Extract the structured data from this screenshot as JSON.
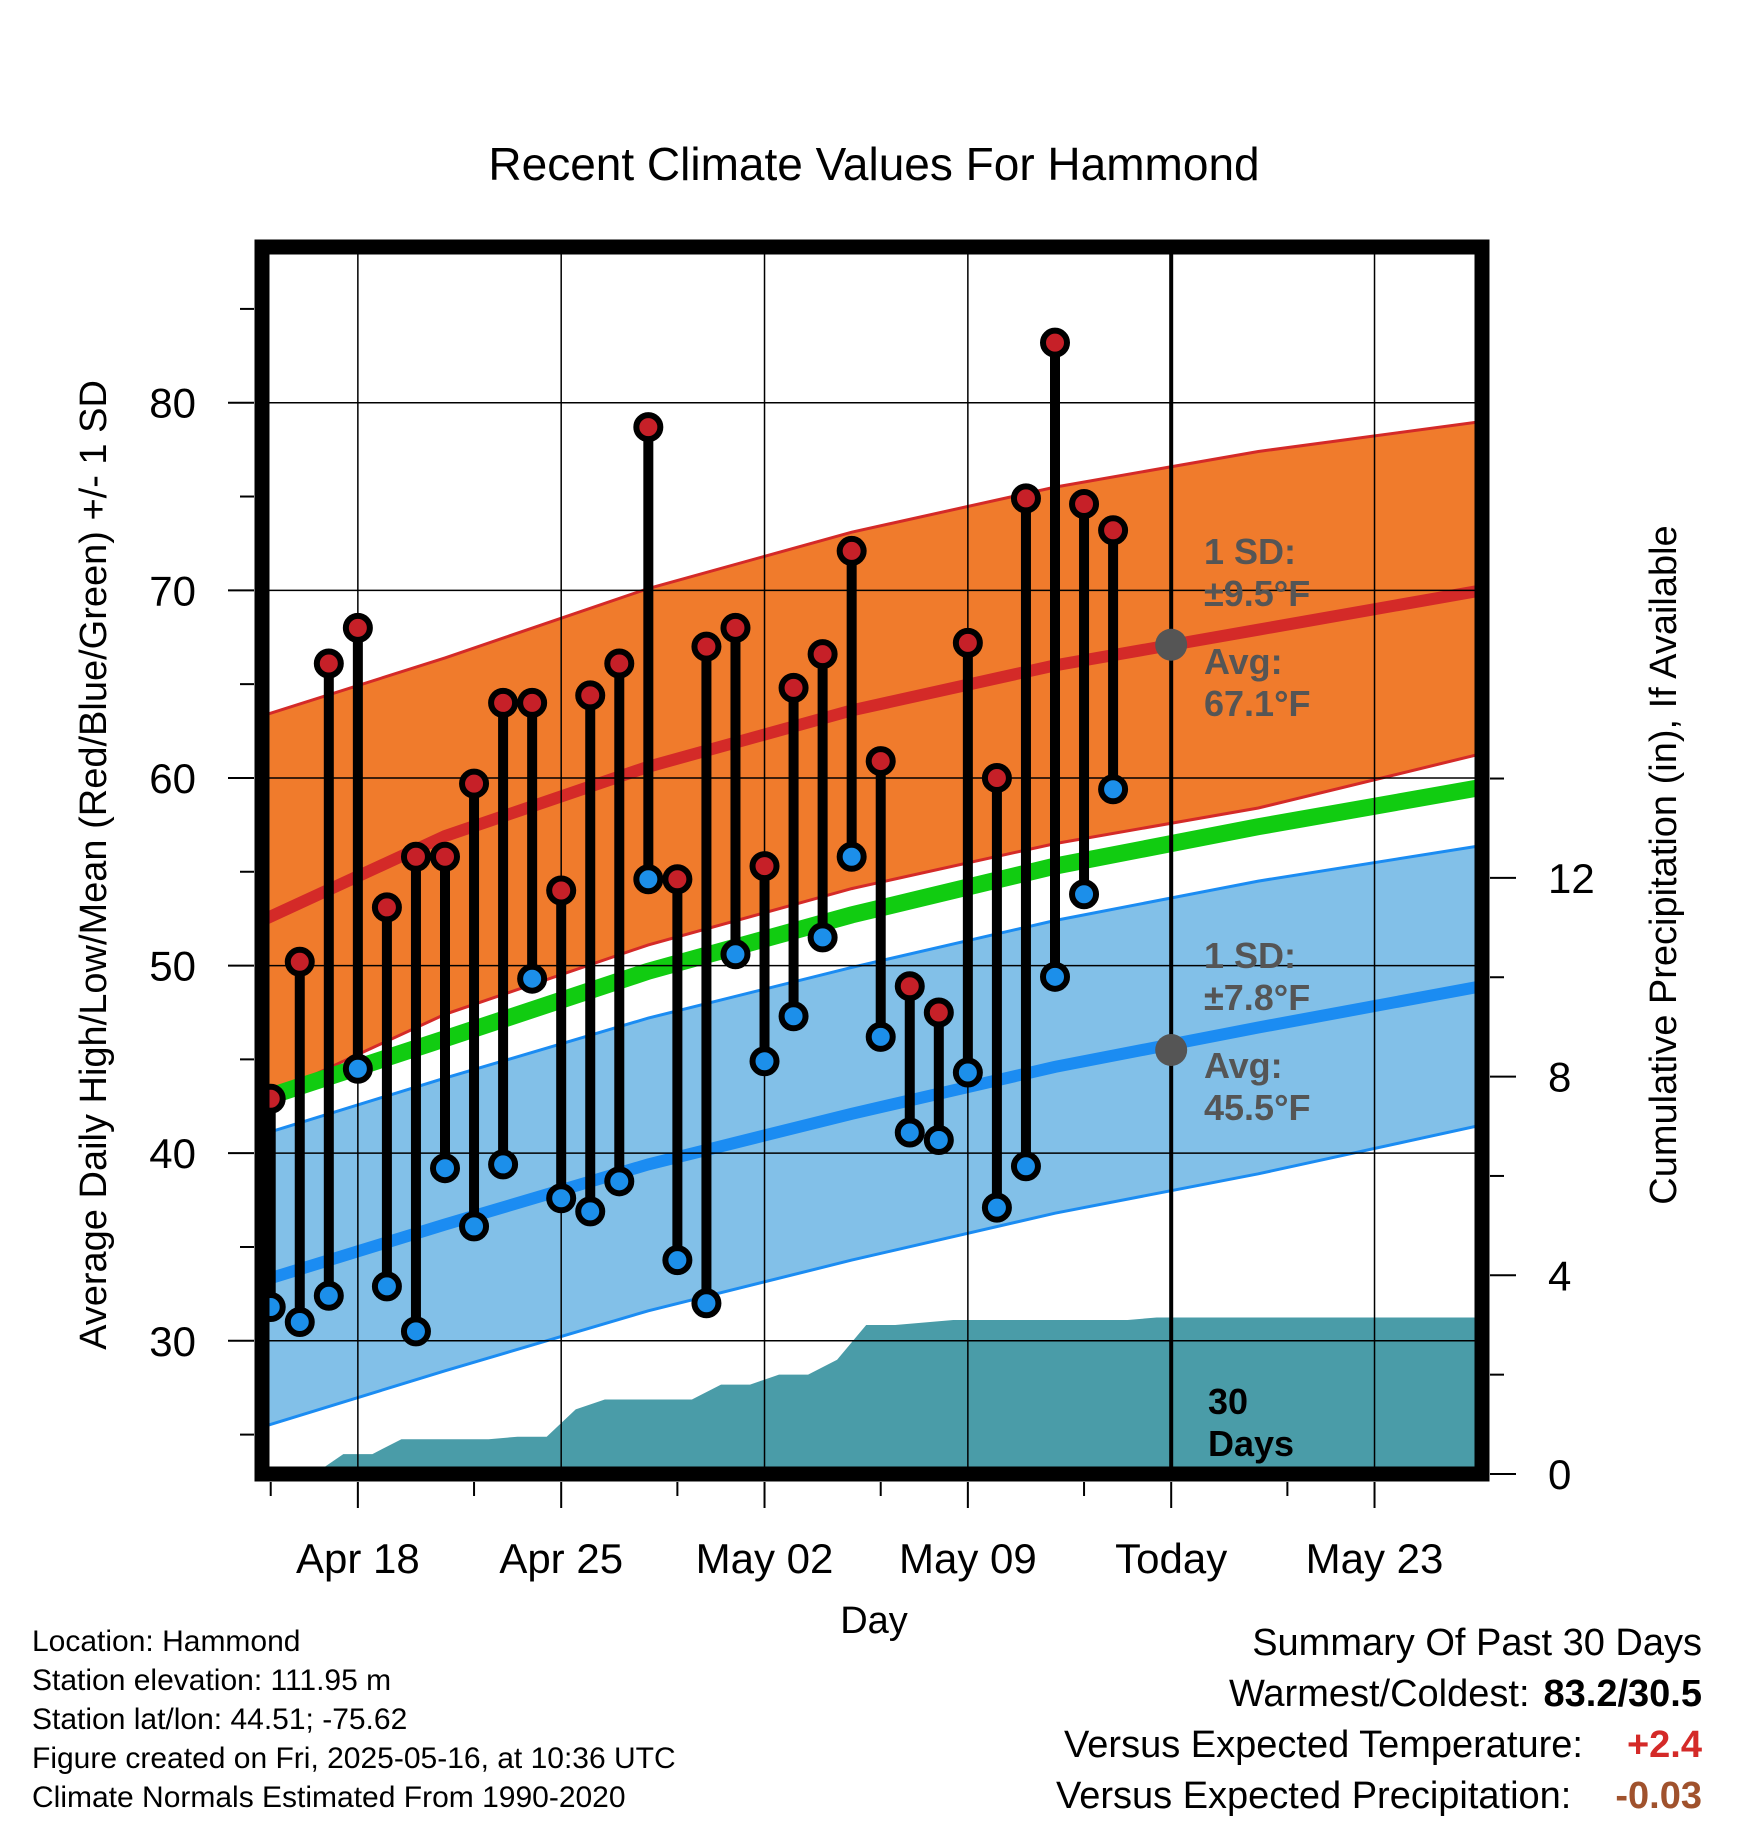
{
  "chart_data": {
    "type": "line",
    "title": "Recent Climate Values For Hammond",
    "xlabel": "Day",
    "ylabel": "Average Daily High/Low/Mean (Red/Blue/Green) +/- 1 SD",
    "y2label": "Cumulative Precipitation (in), If Available",
    "ylim": [
      22.9,
      88.3
    ],
    "y2lim": [
      0,
      24.7
    ],
    "y_ticks": [
      30,
      40,
      50,
      60,
      70,
      80
    ],
    "y2_ticks": [
      0,
      4,
      8,
      12
    ],
    "x_range": [
      "2025-04-14.7",
      "2025-05-26.7"
    ],
    "x_ticks": [
      {
        "date": "2025-04-18",
        "label": "Apr 18"
      },
      {
        "date": "2025-04-25",
        "label": "Apr 25"
      },
      {
        "date": "2025-05-02",
        "label": "May 02"
      },
      {
        "date": "2025-05-09",
        "label": "May 09"
      },
      {
        "date": "2025-05-16",
        "label": "Today"
      },
      {
        "date": "2025-05-23",
        "label": "May 23"
      }
    ],
    "today": "2025-05-16",
    "grid": true,
    "normals": {
      "dates": [
        "2025-04-14.7",
        "2025-04-21",
        "2025-04-28",
        "2025-05-05",
        "2025-05-12",
        "2025-05-19",
        "2025-05-26.7"
      ],
      "avg_high": [
        52.4,
        56.9,
        60.6,
        63.6,
        66.0,
        67.9,
        70.0
      ],
      "high_sd_upper": [
        63.3,
        66.4,
        70.1,
        73.1,
        75.5,
        77.4,
        79.0
      ],
      "high_sd_lower": [
        42.9,
        47.4,
        51.1,
        54.1,
        56.5,
        58.4,
        61.3
      ],
      "avg_mean": [
        42.9,
        46.1,
        49.7,
        52.7,
        55.3,
        57.4,
        59.5
      ],
      "avg_low": [
        33.2,
        36.2,
        39.4,
        42.1,
        44.6,
        46.7,
        48.9
      ],
      "low_sd_upper": [
        41.0,
        44.0,
        47.2,
        49.9,
        52.4,
        54.5,
        56.4
      ],
      "low_sd_lower": [
        25.4,
        28.4,
        31.6,
        34.3,
        36.8,
        38.9,
        41.5
      ]
    },
    "high_sd_label": "1 SD:",
    "high_sd_value": "±9.5°F",
    "high_avg_label": "Avg:",
    "high_avg_value": "67.1°F",
    "low_sd_label": "1 SD:",
    "low_sd_value": "±7.8°F",
    "low_avg_label": "Avg:",
    "low_avg_value": "45.5°F",
    "today_high_avg": 67.1,
    "today_low_avg": 45.5,
    "days_label_1": "30",
    "days_label_2": "Days",
    "daily": {
      "dates": [
        "2025-04-15",
        "2025-04-16",
        "2025-04-17",
        "2025-04-18",
        "2025-04-19",
        "2025-04-20",
        "2025-04-21",
        "2025-04-22",
        "2025-04-23",
        "2025-04-24",
        "2025-04-25",
        "2025-04-26",
        "2025-04-27",
        "2025-04-28",
        "2025-04-29",
        "2025-04-30",
        "2025-05-01",
        "2025-05-02",
        "2025-05-03",
        "2025-05-04",
        "2025-05-05",
        "2025-05-06",
        "2025-05-07",
        "2025-05-08",
        "2025-05-09",
        "2025-05-10",
        "2025-05-11",
        "2025-05-12",
        "2025-05-13",
        "2025-05-14",
        "2025-05-15"
      ],
      "highs": [
        42.9,
        50.2,
        66.1,
        68.0,
        53.1,
        55.8,
        55.8,
        59.7,
        64.0,
        64.0,
        54.0,
        64.4,
        66.1,
        78.7,
        54.6,
        67.0,
        68.0,
        55.3,
        64.8,
        66.6,
        72.1,
        60.9,
        48.9,
        47.5,
        67.2,
        60.0,
        74.9,
        83.2,
        74.6,
        73.2,
        null
      ],
      "lows": [
        31.8,
        31.0,
        32.4,
        44.5,
        32.9,
        30.5,
        39.2,
        36.1,
        39.4,
        49.3,
        37.6,
        36.9,
        38.5,
        54.6,
        34.3,
        32.0,
        50.6,
        44.9,
        47.3,
        51.5,
        55.8,
        46.2,
        41.1,
        40.7,
        44.3,
        37.1,
        39.3,
        49.4,
        53.8,
        59.4,
        null
      ]
    },
    "precip": {
      "dates": [
        "2025-04-14.7",
        "2025-04-16.5",
        "2025-04-17.5",
        "2025-04-18.5",
        "2025-04-19.5",
        "2025-04-20.5",
        "2025-04-21.5",
        "2025-04-22.5",
        "2025-04-23.5",
        "2025-04-24.5",
        "2025-04-25.5",
        "2025-04-26.5",
        "2025-04-27.5",
        "2025-04-28.5",
        "2025-04-29.5",
        "2025-04-30.5",
        "2025-05-01.5",
        "2025-05-02.5",
        "2025-05-03.5",
        "2025-05-04.5",
        "2025-05-05.5",
        "2025-05-06.5",
        "2025-05-07.5",
        "2025-05-08.5",
        "2025-05-09.5",
        "2025-05-10.5",
        "2025-05-11.5",
        "2025-05-12.5",
        "2025-05-13.5",
        "2025-05-14.5",
        "2025-05-15.5",
        "2025-05-16",
        "2025-05-26.7"
      ],
      "values": [
        0,
        0,
        0.4,
        0.4,
        0.7,
        0.7,
        0.7,
        0.7,
        0.75,
        0.75,
        1.3,
        1.5,
        1.5,
        1.5,
        1.5,
        1.8,
        1.8,
        2.0,
        2.0,
        2.3,
        3.0,
        3.0,
        3.05,
        3.1,
        3.1,
        3.1,
        3.1,
        3.1,
        3.1,
        3.1,
        3.15,
        3.15,
        3.15
      ]
    },
    "colors": {
      "high_band": "#f07b2c",
      "high_line": "#d42a28",
      "high_band_edge": "#d42a28",
      "low_band": "#82c0e8",
      "low_line": "#1b8cf2",
      "low_band_edge": "#1b8cf2",
      "mean_line": "#11cc11",
      "precip_fill": "#4a9ca8",
      "high_marker": "#c62028",
      "low_marker": "#1c8fea",
      "annot": "#555555"
    }
  },
  "info": {
    "location": "Location: Hammond",
    "elevation": "Station elevation: 111.95 m",
    "latlon": "Station lat/lon: 44.51; -75.62",
    "created": "Figure created on Fri, 2025-05-16, at 10:36 UTC",
    "normals": "Climate Normals Estimated From 1990-2020"
  },
  "summary": {
    "heading": "Summary Of Past 30 Days",
    "warm_cold_label": "Warmest/Coldest:",
    "warm_cold_value": "83.2/30.5",
    "temp_label": "Versus Expected Temperature:",
    "temp_value": "+2.4",
    "temp_color": "#d42a28",
    "precip_label": "Versus Expected Precipitation:",
    "precip_value": "-0.03",
    "precip_color": "#a0522d"
  }
}
